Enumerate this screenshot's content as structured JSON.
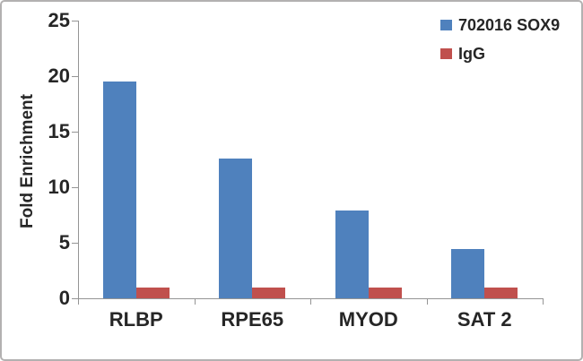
{
  "chart_data": {
    "type": "bar",
    "title": "",
    "categories": [
      "RLBP",
      "RPE65",
      "MYOD",
      "SAT 2"
    ],
    "series": [
      {
        "name": "702016 SOX9",
        "color": "#4F81BD",
        "values": [
          19.5,
          12.6,
          7.9,
          4.4
        ]
      },
      {
        "name": "IgG",
        "color": "#C0504D",
        "values": [
          1.0,
          1.0,
          1.0,
          1.0
        ]
      }
    ],
    "xlabel": "",
    "ylabel": "Fold Enrichment",
    "ylim": [
      0,
      25
    ],
    "yticks": [
      0,
      5,
      10,
      15,
      20,
      25
    ],
    "grid": false,
    "legend_position": "top-right"
  },
  "colors": {
    "axis": "#959595",
    "text": "#262626",
    "frame_border": "#B3B1B1",
    "background": "#FFFFFF"
  }
}
